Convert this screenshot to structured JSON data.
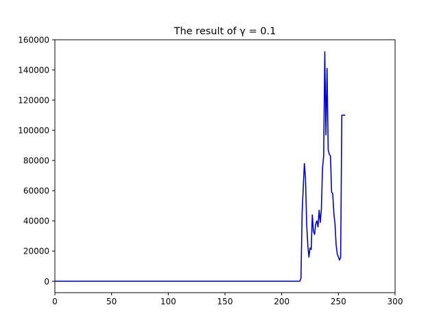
{
  "chart_data": {
    "type": "line",
    "title": "The result of γ = 0.1",
    "xlabel": "",
    "ylabel": "",
    "xlim": [
      0,
      300
    ],
    "ylim": [
      -7600,
      160000
    ],
    "x_ticks": [
      0,
      50,
      100,
      150,
      200,
      250,
      300
    ],
    "x_tick_labels": [
      "0",
      "50",
      "100",
      "150",
      "200",
      "250",
      "300"
    ],
    "y_ticks": [
      0,
      20000,
      40000,
      60000,
      80000,
      100000,
      120000,
      140000,
      160000
    ],
    "y_tick_labels": [
      "0",
      "20000",
      "40000",
      "60000",
      "80000",
      "100000",
      "120000",
      "140000",
      "160000"
    ],
    "grid": false,
    "legend": "none",
    "line_color": "#0000cc",
    "series": [
      {
        "x": [
          0,
          216,
          217,
          218,
          219,
          220,
          221,
          222,
          223,
          224,
          225,
          226,
          227,
          228,
          229,
          230,
          231,
          232,
          233,
          234,
          235,
          236,
          237,
          238,
          239,
          240,
          241,
          242,
          243,
          244,
          245,
          246,
          247,
          248,
          249,
          250,
          251,
          252,
          253,
          254,
          255,
          256
        ],
        "y": [
          0,
          0,
          2000,
          45000,
          62000,
          78000,
          68000,
          38000,
          24000,
          16000,
          22000,
          21000,
          44000,
          33000,
          31000,
          38000,
          40000,
          36000,
          47000,
          39000,
          48000,
          75000,
          83000,
          152000,
          97000,
          141000,
          87000,
          84000,
          83000,
          59000,
          58000,
          45000,
          38000,
          24000,
          18000,
          16000,
          14000,
          16000,
          110000,
          110000,
          110000,
          110000
        ]
      }
    ]
  }
}
